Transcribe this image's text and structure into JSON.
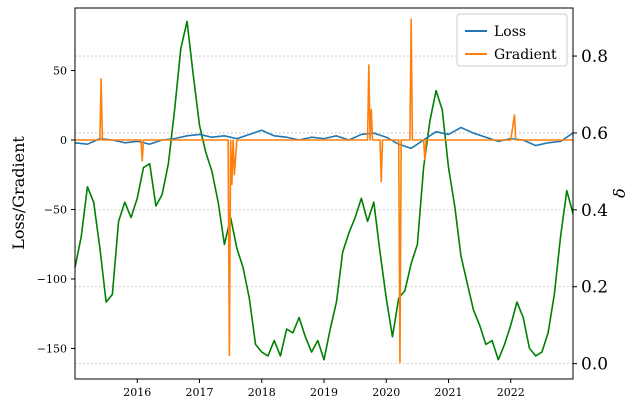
{
  "chart_data": {
    "type": "line",
    "title": "",
    "xlabel": "",
    "ylabel_left": "Loss/Gradient",
    "ylabel_right": "δ",
    "x_ticks": [
      "2016",
      "2017",
      "2018",
      "2019",
      "2020",
      "2021",
      "2022"
    ],
    "y_left_ticks": [
      50,
      0,
      -50,
      -100,
      -150
    ],
    "y_left_lim": [
      -172,
      95
    ],
    "y_right_ticks": [
      "0.0",
      "0.2",
      "0.4",
      "0.6",
      "0.8"
    ],
    "y_right_lim": [
      -0.04,
      0.925
    ],
    "x_lim": [
      2015.0,
      2023.0
    ],
    "grid": "horizontal dotted at right-axis ticks",
    "legend": {
      "position": "top-right",
      "entries": [
        "Loss",
        "Gradient"
      ]
    },
    "colors": {
      "loss": "#1f77b4",
      "gradient": "#ff7f0e",
      "delta": "#008000"
    },
    "series": [
      {
        "name": "Loss",
        "axis": "left",
        "x": [
          2015.0,
          2015.2,
          2015.4,
          2015.6,
          2015.8,
          2016.0,
          2016.2,
          2016.4,
          2016.6,
          2016.8,
          2017.0,
          2017.2,
          2017.4,
          2017.6,
          2017.8,
          2018.0,
          2018.2,
          2018.4,
          2018.6,
          2018.8,
          2019.0,
          2019.2,
          2019.4,
          2019.6,
          2019.8,
          2020.0,
          2020.2,
          2020.4,
          2020.6,
          2020.8,
          2021.0,
          2021.2,
          2021.4,
          2021.6,
          2021.8,
          2022.0,
          2022.2,
          2022.4,
          2022.6,
          2022.8,
          2023.0
        ],
        "y": [
          -2,
          -3,
          1,
          0,
          -2,
          -1,
          -3,
          0,
          1,
          3,
          4,
          2,
          3,
          1,
          4,
          7,
          3,
          2,
          0,
          2,
          1,
          3,
          0,
          4,
          5,
          2,
          -3,
          -6,
          0,
          6,
          4,
          9,
          5,
          2,
          -1,
          1,
          0,
          -4,
          -2,
          -1,
          5
        ]
      },
      {
        "name": "Gradient",
        "axis": "left",
        "x": [
          2015.0,
          2015.4,
          2015.42,
          2015.44,
          2015.6,
          2016.06,
          2016.08,
          2016.1,
          2016.5,
          2017.0,
          2017.46,
          2017.48,
          2017.5,
          2017.52,
          2017.54,
          2017.56,
          2017.6,
          2018.0,
          2018.5,
          2019.0,
          2019.5,
          2019.7,
          2019.72,
          2019.74,
          2019.76,
          2019.78,
          2019.9,
          2019.92,
          2019.94,
          2020.2,
          2020.22,
          2020.24,
          2020.38,
          2020.4,
          2020.42,
          2020.5,
          2020.6,
          2020.62,
          2020.64,
          2021.0,
          2021.5,
          2022.0,
          2022.06,
          2022.08,
          2022.1,
          2022.5,
          2023.0
        ],
        "y": [
          0,
          0,
          44,
          0,
          0,
          0,
          -15,
          0,
          0,
          0,
          0,
          -155,
          0,
          -32,
          0,
          -25,
          0,
          0,
          0,
          0,
          0,
          0,
          54,
          0,
          22,
          0,
          0,
          -30,
          0,
          0,
          -160,
          0,
          0,
          87,
          0,
          0,
          0,
          -14,
          0,
          0,
          0,
          0,
          18,
          0,
          0,
          0,
          0
        ]
      },
      {
        "name": "",
        "axis": "right",
        "x": [
          2015.0,
          2015.1,
          2015.2,
          2015.3,
          2015.4,
          2015.5,
          2015.6,
          2015.7,
          2015.8,
          2015.9,
          2016.0,
          2016.1,
          2016.2,
          2016.3,
          2016.4,
          2016.5,
          2016.6,
          2016.7,
          2016.8,
          2016.9,
          2017.0,
          2017.1,
          2017.2,
          2017.3,
          2017.4,
          2017.5,
          2017.6,
          2017.7,
          2017.8,
          2017.9,
          2018.0,
          2018.1,
          2018.2,
          2018.3,
          2018.4,
          2018.5,
          2018.6,
          2018.7,
          2018.8,
          2018.9,
          2019.0,
          2019.1,
          2019.2,
          2019.3,
          2019.4,
          2019.5,
          2019.6,
          2019.7,
          2019.8,
          2019.9,
          2020.0,
          2020.1,
          2020.2,
          2020.3,
          2020.4,
          2020.5,
          2020.6,
          2020.7,
          2020.8,
          2020.9,
          2021.0,
          2021.1,
          2021.2,
          2021.3,
          2021.4,
          2021.5,
          2021.6,
          2021.7,
          2021.8,
          2021.9,
          2022.0,
          2022.1,
          2022.2,
          2022.3,
          2022.4,
          2022.5,
          2022.6,
          2022.7,
          2022.8,
          2022.9,
          2023.0
        ],
        "y": [
          0.25,
          0.33,
          0.46,
          0.42,
          0.3,
          0.16,
          0.18,
          0.37,
          0.42,
          0.38,
          0.43,
          0.51,
          0.52,
          0.41,
          0.44,
          0.52,
          0.66,
          0.82,
          0.89,
          0.75,
          0.62,
          0.55,
          0.5,
          0.42,
          0.31,
          0.38,
          0.3,
          0.25,
          0.17,
          0.05,
          0.03,
          0.02,
          0.06,
          0.02,
          0.09,
          0.08,
          0.12,
          0.07,
          0.03,
          0.06,
          0.01,
          0.09,
          0.16,
          0.29,
          0.34,
          0.38,
          0.43,
          0.37,
          0.42,
          0.29,
          0.17,
          0.07,
          0.17,
          0.19,
          0.26,
          0.31,
          0.51,
          0.63,
          0.71,
          0.66,
          0.51,
          0.41,
          0.28,
          0.21,
          0.14,
          0.1,
          0.05,
          0.06,
          0.01,
          0.05,
          0.1,
          0.16,
          0.12,
          0.04,
          0.02,
          0.03,
          0.08,
          0.18,
          0.33,
          0.45,
          0.39
        ]
      }
    ]
  }
}
